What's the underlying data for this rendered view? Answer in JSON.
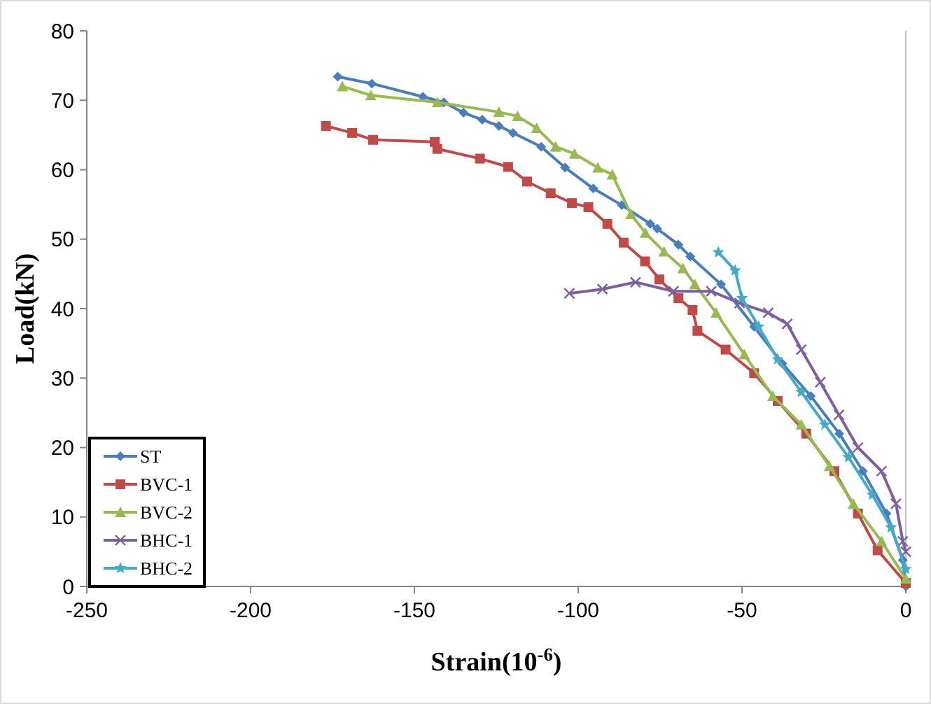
{
  "chart_data": {
    "type": "line",
    "xlabel": "Strain(10$^{-6}$)",
    "ylabel": "Load(kN)",
    "xlim": [
      -250,
      0
    ],
    "xticks": [
      -250,
      -200,
      -150,
      -100,
      -50,
      0
    ],
    "ylim": [
      0,
      80
    ],
    "yticks": [
      0,
      10,
      20,
      30,
      40,
      50,
      60,
      70,
      80
    ],
    "grid": false,
    "legend": "bottom left",
    "series": [
      {
        "name": "ST",
        "color": "#4a7ebb",
        "marker": "diamond",
        "x": [
          -173.4,
          -163,
          -147.4,
          -141,
          -135,
          -129.3,
          -124.2,
          -119.9,
          -111.3,
          -104,
          -95.4,
          -86.7,
          -78,
          -75.9,
          -69.4,
          -65.8,
          -56.4,
          -46.3,
          -37.7,
          -29,
          -20.3,
          -13.1,
          -5.9,
          -0.9,
          0
        ],
        "values": [
          73.4,
          72.4,
          70.5,
          69.7,
          68.2,
          67.2,
          66.3,
          65.3,
          63.3,
          60.3,
          57.3,
          54.9,
          52.2,
          51.5,
          49.2,
          47.5,
          43.5,
          37.4,
          32.1,
          27.4,
          22,
          16.6,
          10.5,
          3.8,
          0
        ]
      },
      {
        "name": "BVC-1",
        "color": "#be4b48",
        "marker": "square",
        "x": [
          -177,
          -169,
          -162.6,
          -143.8,
          -143,
          -130,
          -121.4,
          -115.6,
          -108.4,
          -101.9,
          -96.9,
          -91.1,
          -86.1,
          -79.6,
          -75.2,
          -69.4,
          -65.1,
          -63.6,
          -55,
          -46.3,
          -39.1,
          -30.4,
          -21.8,
          -14.6,
          -8.6,
          0
        ],
        "values": [
          66.3,
          65.3,
          64.3,
          64,
          63,
          61.6,
          60.4,
          58.3,
          56.6,
          55.2,
          54.6,
          52.2,
          49.5,
          46.8,
          44.2,
          41.5,
          39.8,
          36.8,
          34.1,
          30.7,
          26.7,
          22,
          16.6,
          10.5,
          5.2,
          0.5
        ]
      },
      {
        "name": "BVC-2",
        "color": "#98b954",
        "marker": "triangle",
        "x": [
          -172,
          -163.3,
          -143,
          -124.2,
          -118.5,
          -112.7,
          -106.9,
          -101.1,
          -94,
          -89.6,
          -83.9,
          -79.5,
          -73.8,
          -68,
          -64.4,
          -57.9,
          -49.3,
          -40.6,
          -31.9,
          -23.3,
          -16,
          -7.4,
          0
        ],
        "values": [
          72,
          70.7,
          69.7,
          68.3,
          67.7,
          66,
          63.3,
          62.3,
          60.3,
          59.3,
          53.6,
          50.9,
          48.2,
          45.8,
          43.5,
          39.4,
          33.4,
          27.4,
          23.3,
          17.3,
          11.9,
          6.5,
          1.1
        ]
      },
      {
        "name": "BHC-1",
        "color": "#7d5fa0",
        "marker": "cross",
        "x": [
          -102.7,
          -92.6,
          -82.5,
          -70.9,
          -59.4,
          -50.7,
          -42,
          -36.2,
          -31.9,
          -26.1,
          -20.4,
          -14.6,
          -7.4,
          -3,
          -0.9,
          0
        ],
        "values": [
          42.2,
          42.8,
          43.8,
          42.5,
          42.5,
          40.8,
          39.4,
          37.8,
          34.1,
          29.4,
          24.7,
          20,
          16.6,
          11.9,
          6.5,
          5
        ]
      },
      {
        "name": "BHC-2",
        "color": "#46aac5",
        "marker": "star",
        "x": [
          -57.2,
          -52.1,
          -50,
          -44.9,
          -39.1,
          -31.9,
          -24.7,
          -17.5,
          -10.2,
          -4.5,
          0
        ],
        "values": [
          48.1,
          45.5,
          41.5,
          37.4,
          32.7,
          28,
          23.3,
          18.6,
          13.2,
          8.5,
          2.5
        ]
      }
    ]
  }
}
